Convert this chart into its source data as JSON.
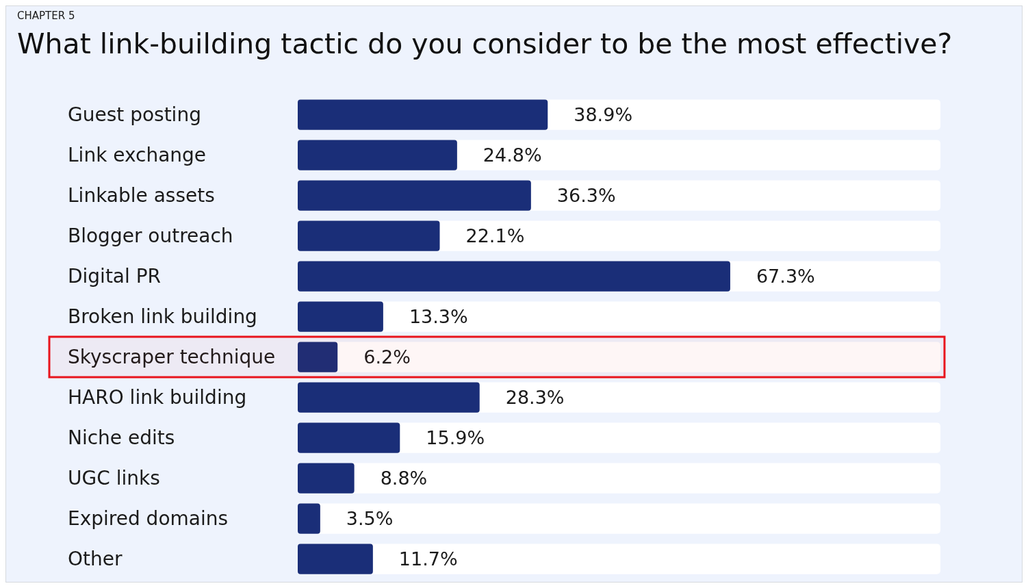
{
  "chart_data": {
    "type": "bar",
    "orientation": "horizontal",
    "subtitle": "CHAPTER 5",
    "title": "What link-building tactic do you consider to be the most effective?",
    "categories": [
      "Guest posting",
      "Link exchange",
      "Linkable assets",
      "Blogger outreach",
      "Digital PR",
      "Broken link building",
      "Skyscraper technique",
      "HARO link building",
      "Niche edits",
      "UGC links",
      "Expired domains",
      "Other"
    ],
    "values": [
      38.9,
      24.8,
      36.3,
      22.1,
      67.3,
      13.3,
      6.2,
      28.3,
      15.9,
      8.8,
      3.5,
      11.7
    ],
    "value_labels": [
      "38.9%",
      "24.8%",
      "36.3%",
      "22.1%",
      "67.3%",
      "13.3%",
      "6.2%",
      "28.3%",
      "15.9%",
      "8.8%",
      "3.5%",
      "11.7%"
    ],
    "color": "#1a2e78",
    "xlim": [
      0,
      100
    ],
    "tick_labels": "y",
    "bands": [
      {
        "axis": "y",
        "from": "Skyscraper technique",
        "to": "Skyscraper technique",
        "color": "#e8141c"
      }
    ]
  }
}
